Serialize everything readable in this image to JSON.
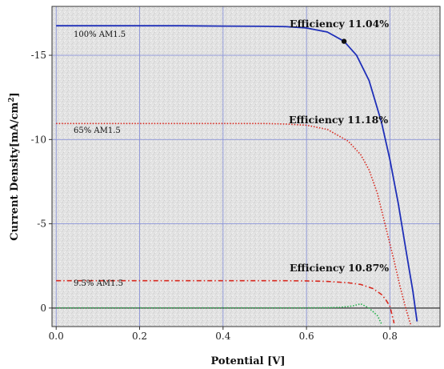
{
  "chart_data": {
    "type": "line",
    "xlabel": "Potential [V]",
    "ylabel": "Current Density[mA/cm",
    "ylabel_superscript": "2",
    "ylabel_suffix": "]",
    "xlim": [
      -0.01,
      0.92
    ],
    "ylim": [
      -17.9,
      1.1
    ],
    "y_inverted": true,
    "grid": true,
    "x_ticks": [
      "0.0",
      "0.2",
      "0.4",
      "0.6",
      "0.8"
    ],
    "x_tick_values": [
      0.0,
      0.2,
      0.4,
      0.6,
      0.8
    ],
    "y_ticks": [
      "-15",
      "-10",
      "-5",
      "0"
    ],
    "y_tick_values": [
      -15,
      -10,
      -5,
      0
    ],
    "series": [
      {
        "name": "100% AM1.5",
        "color": "#1f2fb8",
        "style": "solid",
        "x": [
          0.0,
          0.1,
          0.2,
          0.3,
          0.4,
          0.5,
          0.55,
          0.6,
          0.65,
          0.69,
          0.72,
          0.75,
          0.78,
          0.8,
          0.82,
          0.84,
          0.855,
          0.865
        ],
        "y": [
          -16.75,
          -16.75,
          -16.75,
          -16.75,
          -16.73,
          -16.72,
          -16.7,
          -16.62,
          -16.38,
          -15.83,
          -15.0,
          -13.5,
          -11.0,
          -8.8,
          -6.2,
          -3.2,
          -1.0,
          0.8
        ]
      },
      {
        "name": "65% AM1.5",
        "color": "#d8281e",
        "style": "dotted",
        "x": [
          0.0,
          0.1,
          0.2,
          0.3,
          0.4,
          0.5,
          0.55,
          0.6,
          0.65,
          0.7,
          0.73,
          0.75,
          0.77,
          0.79,
          0.81,
          0.825,
          0.84,
          0.85
        ],
        "y": [
          -10.95,
          -10.95,
          -10.95,
          -10.95,
          -10.95,
          -10.95,
          -10.92,
          -10.85,
          -10.6,
          -9.9,
          -9.1,
          -8.2,
          -6.8,
          -4.8,
          -2.8,
          -1.2,
          0.2,
          1.0
        ]
      },
      {
        "name": "9.5% AM1.5",
        "color": "#d8281e",
        "style": "dashdot",
        "x": [
          0.0,
          0.1,
          0.2,
          0.3,
          0.4,
          0.5,
          0.55,
          0.6,
          0.65,
          0.7,
          0.73,
          0.76,
          0.78,
          0.79,
          0.8,
          0.81
        ],
        "y": [
          -1.62,
          -1.62,
          -1.62,
          -1.62,
          -1.62,
          -1.62,
          -1.62,
          -1.61,
          -1.58,
          -1.5,
          -1.4,
          -1.15,
          -0.8,
          -0.5,
          -0.1,
          0.9
        ]
      },
      {
        "color": "#22b24a",
        "style": "dotted",
        "x": [
          0.0,
          0.2,
          0.4,
          0.6,
          0.65,
          0.68,
          0.71,
          0.73,
          0.75,
          0.77,
          0.78
        ],
        "y": [
          -0.01,
          -0.01,
          -0.01,
          -0.01,
          -0.02,
          -0.04,
          -0.12,
          -0.25,
          -0.0,
          0.45,
          0.95
        ]
      }
    ],
    "markers": [
      {
        "x": 0.69,
        "y": -15.83,
        "color": "#111111"
      }
    ],
    "curve_labels": [
      {
        "text": "100% AM1.5",
        "series": 0
      },
      {
        "text": "65% AM1.5",
        "series": 1
      },
      {
        "text": "9.5% AM1.5",
        "series": 2
      }
    ],
    "annotations": [
      {
        "text": "Efficiency 11.04%"
      },
      {
        "text": "Efficiency 11.18%"
      },
      {
        "text": "Efficiency 10.87%"
      }
    ]
  }
}
